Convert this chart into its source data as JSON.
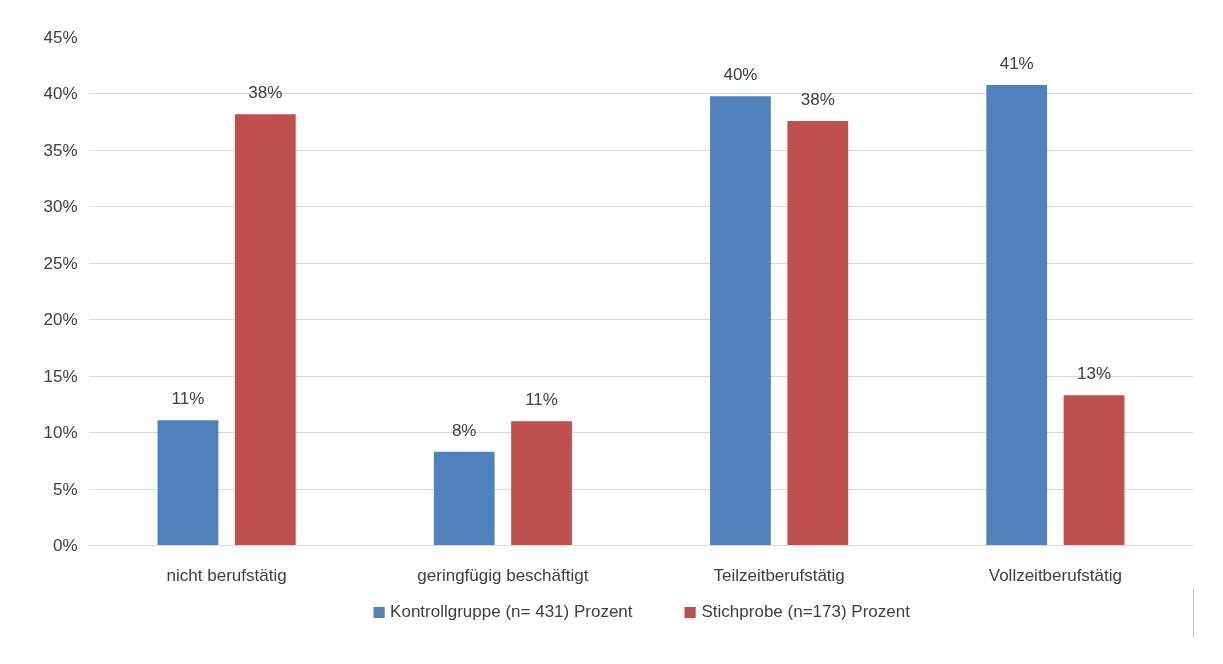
{
  "chart_data": {
    "type": "bar",
    "categories": [
      "nicht berufstätig",
      "geringfügig beschäftigt",
      "Teilzeitberufstätig",
      "Vollzeitberufstätig"
    ],
    "series": [
      {
        "name": "Kontrollgruppe (n= 431) Prozent",
        "color": "#4f81bd",
        "values": [
          11.1,
          8.3,
          39.8,
          40.8
        ],
        "value_labels": [
          "11%",
          "8%",
          "40%",
          "41%"
        ]
      },
      {
        "name": "Stichprobe (n=173) Prozent",
        "color": "#c0504d",
        "values": [
          38.2,
          11.0,
          37.6,
          13.3
        ],
        "value_labels": [
          "38%",
          "11%",
          "38%",
          "13%"
        ]
      }
    ],
    "ylim": [
      0,
      45
    ],
    "yticks": [
      {
        "value": 0,
        "label": "0%"
      },
      {
        "value": 5,
        "label": "5%"
      },
      {
        "value": 10,
        "label": "10%"
      },
      {
        "value": 15,
        "label": "15%"
      },
      {
        "value": 20,
        "label": "20%"
      },
      {
        "value": 25,
        "label": "25%"
      },
      {
        "value": 30,
        "label": "30%"
      },
      {
        "value": 35,
        "label": "35%"
      },
      {
        "value": 40,
        "label": "40%"
      },
      {
        "value": 45,
        "label": "45%"
      }
    ],
    "grid": "y",
    "legend": "bottom"
  }
}
